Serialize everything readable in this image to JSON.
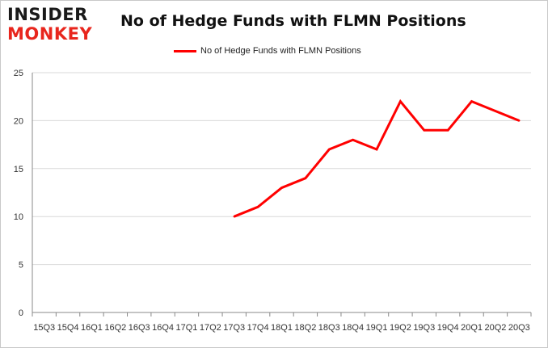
{
  "logo": {
    "line1": "INSIDER",
    "line2": "MONKEY"
  },
  "colors": {
    "series": "#ff0000",
    "grid": "#d9d9d9",
    "logo_red": "#e8261d"
  },
  "chart_data": {
    "type": "line",
    "title": "No of Hedge Funds with FLMN Positions",
    "xlabel": "",
    "ylabel": "",
    "ylim": [
      0,
      25
    ],
    "yticks": [
      0,
      5,
      10,
      15,
      20,
      25
    ],
    "grid": true,
    "legend_position": "top-center",
    "categories": [
      "2015Q3",
      "2015Q4",
      "2016Q1",
      "2016Q2",
      "2016Q3",
      "2016Q4",
      "2017Q1",
      "2017Q2",
      "2017Q3",
      "2017Q4",
      "2018Q1",
      "2018Q2",
      "2018Q3",
      "2018Q4",
      "2019Q1",
      "2019Q2",
      "2019Q3",
      "2019Q4",
      "2020Q1",
      "2020Q2",
      "2020Q3"
    ],
    "tick_labels": [
      "15Q3",
      "15Q4",
      "16Q1",
      "16Q2",
      "16Q3",
      "16Q4",
      "17Q1",
      "17Q2",
      "17Q3",
      "17Q4",
      "18Q1",
      "18Q2",
      "18Q3",
      "18Q4",
      "19Q1",
      "19Q2",
      "19Q3",
      "19Q4",
      "20Q1",
      "20Q2",
      "20Q3"
    ],
    "series": [
      {
        "name": "No of Hedge Funds with FLMN Positions",
        "values": [
          null,
          null,
          null,
          null,
          null,
          null,
          null,
          null,
          10,
          11,
          13,
          14,
          17,
          18,
          17,
          22,
          19,
          19,
          22,
          21,
          20
        ]
      }
    ]
  }
}
